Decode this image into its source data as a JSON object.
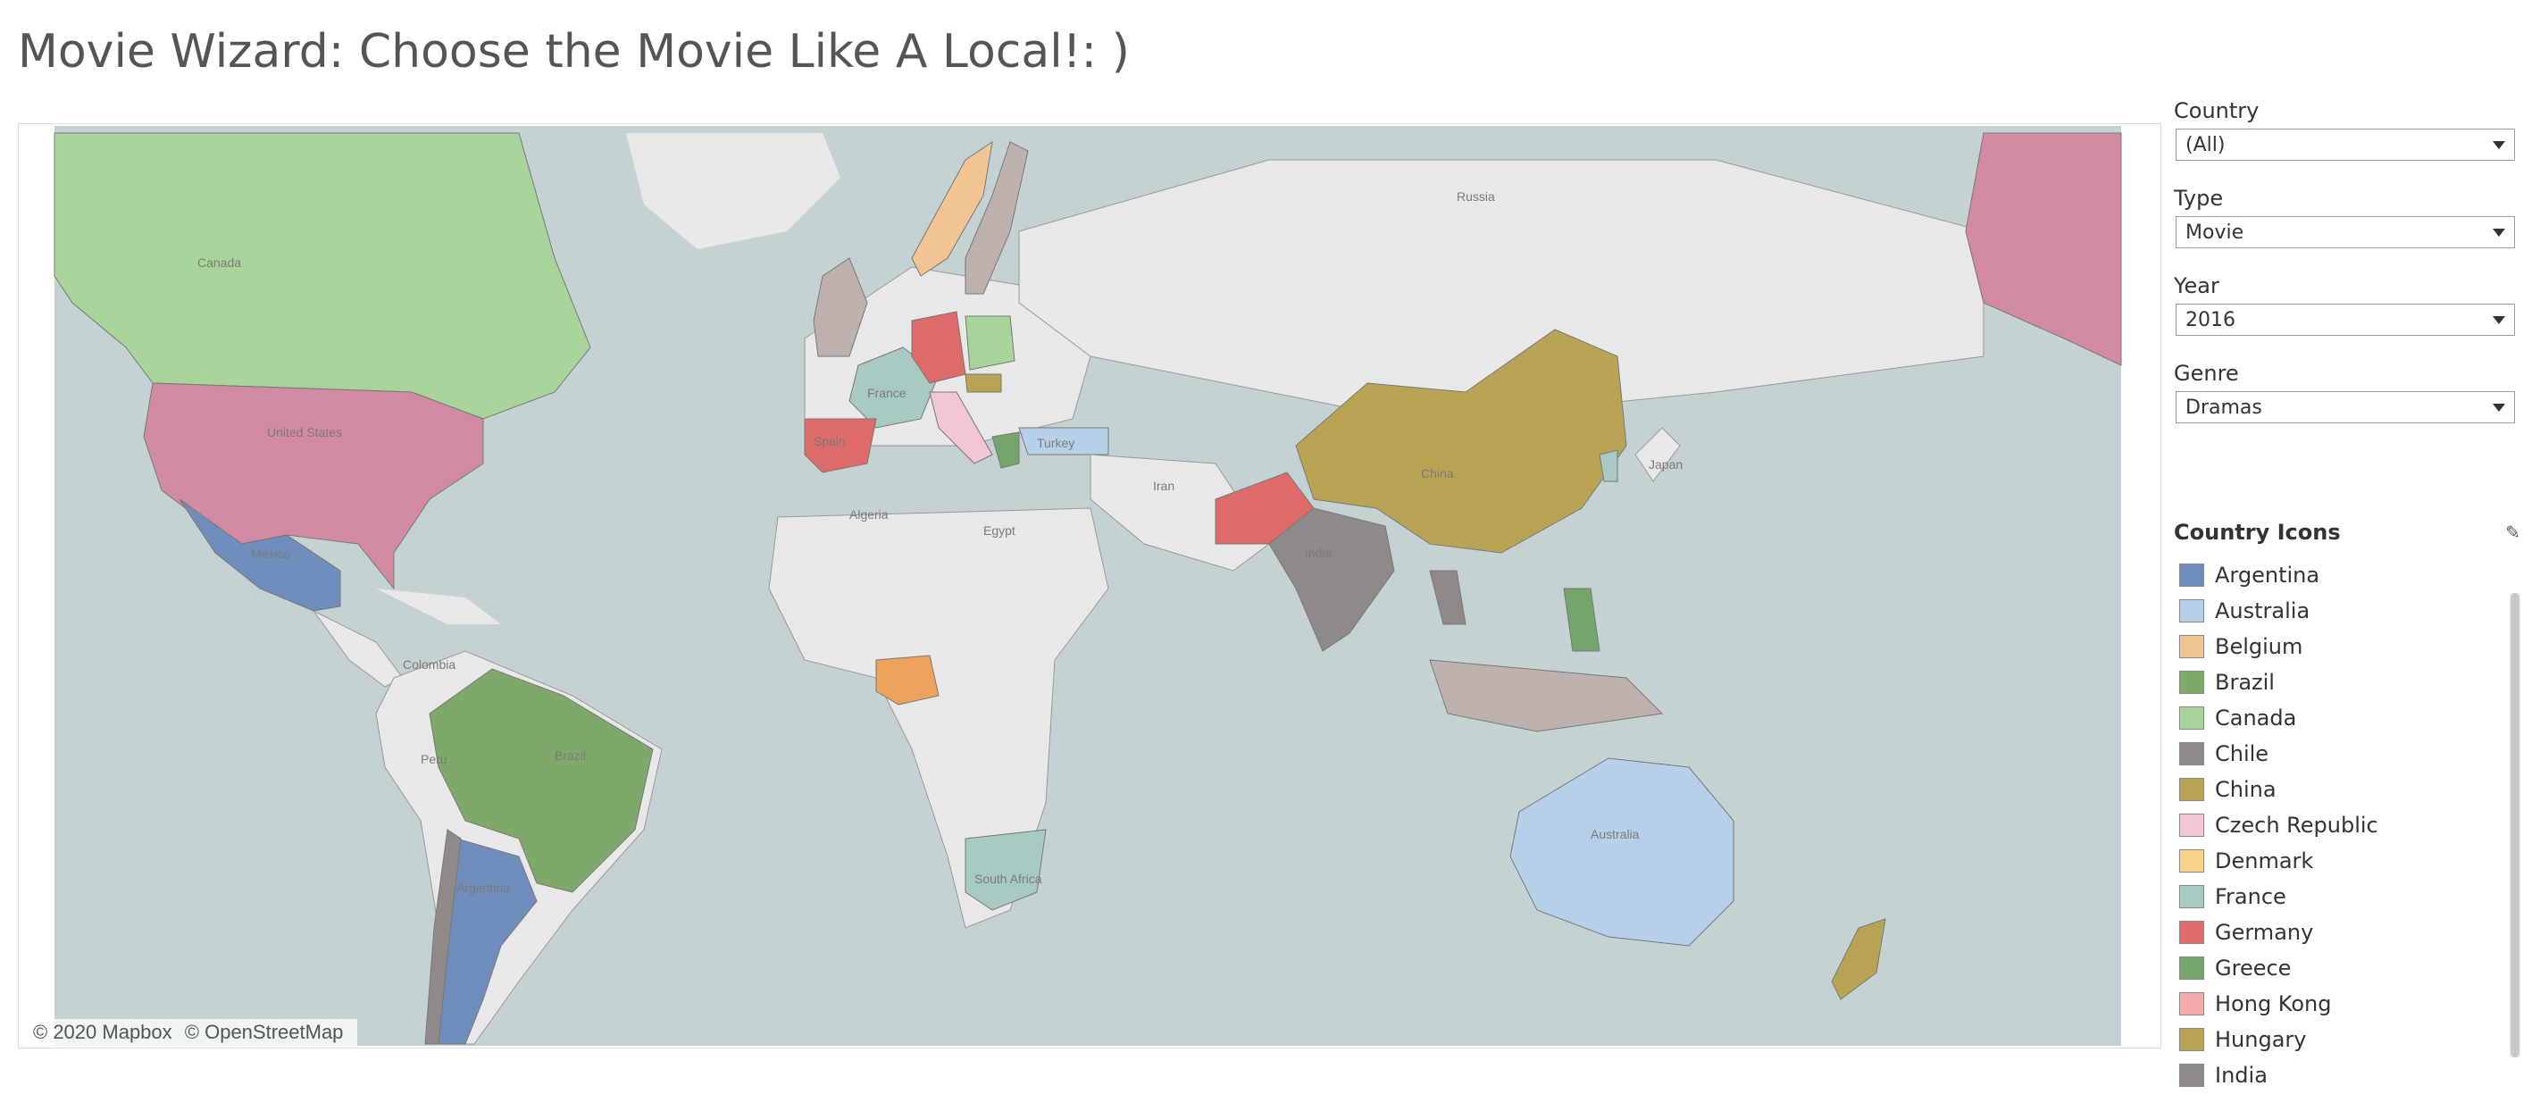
{
  "title": "Movie Wizard: Choose the Movie Like A Local!: )",
  "filters": {
    "country": {
      "label": "Country",
      "value": "(All)"
    },
    "type": {
      "label": "Type",
      "value": "Movie"
    },
    "year": {
      "label": "Year",
      "value": "2016"
    },
    "genre": {
      "label": "Genre",
      "value": "Dramas"
    }
  },
  "legend": {
    "title": "Country Icons",
    "items": [
      {
        "name": "Argentina",
        "color": "#6f8dbb"
      },
      {
        "name": "Australia",
        "color": "#b6d0ea"
      },
      {
        "name": "Belgium",
        "color": "#f4c594"
      },
      {
        "name": "Brazil",
        "color": "#7fa96a"
      },
      {
        "name": "Canada",
        "color": "#a8d49a"
      },
      {
        "name": "Chile",
        "color": "#8f8a89"
      },
      {
        "name": "China",
        "color": "#b9a456"
      },
      {
        "name": "Czech Republic",
        "color": "#f3c5d6"
      },
      {
        "name": "Denmark",
        "color": "#f5d48a"
      },
      {
        "name": "France",
        "color": "#a7c9c1"
      },
      {
        "name": "Germany",
        "color": "#de6b6a"
      },
      {
        "name": "Greece",
        "color": "#74a66b"
      },
      {
        "name": "Hong Kong",
        "color": "#f2acab"
      },
      {
        "name": "Hungary",
        "color": "#b9a456"
      },
      {
        "name": "India",
        "color": "#8f8a89"
      }
    ]
  },
  "map": {
    "labels": {
      "russia": "Russia",
      "canada": "Canada",
      "us": "United States",
      "mexico": "Mexico",
      "algeria": "Algeria",
      "egypt": "Egypt",
      "iran": "Iran",
      "japan": "Japan",
      "china": "China",
      "india": "India",
      "colombia": "Colombia",
      "peru": "Peru",
      "brazil": "Brazil",
      "argentina": "Argentina",
      "australia": "Australia",
      "south_africa": "South Africa",
      "turkey": "Turkey",
      "spain": "Spain",
      "france": "France"
    },
    "attribution": [
      "© 2020 Mapbox",
      "© OpenStreetMap"
    ],
    "colors": {
      "ocean": "#c4d2d3",
      "land": "#e8e8e8",
      "usa": "#d38aa3",
      "canada": "#a8d49a",
      "mexico": "#6f8dbb",
      "brazil": "#7fa96a",
      "argentina": "#6f8dbb",
      "chile": "#8f8a89",
      "china": "#b9a456",
      "india": "#8f8a89",
      "pakistan": "#de6b6a",
      "australia": "#b6d0ea",
      "nigeria": "#eea35d",
      "south_africa": "#a7c9c1",
      "turkey": "#b6d0ea",
      "spain": "#de6b6a",
      "france": "#a7c9c1",
      "germany": "#de6b6a",
      "uk": "#bdb0ad",
      "norway": "#f4c594",
      "sweden": "#bdb0ad",
      "poland": "#a8d49a",
      "italy": "#f3c5d6",
      "thailand": "#8f8a89",
      "indonesia": "#bdb0ad",
      "philippines": "#74a66b",
      "new_zealand": "#b9a456",
      "alaska": "#d38aa3"
    }
  }
}
